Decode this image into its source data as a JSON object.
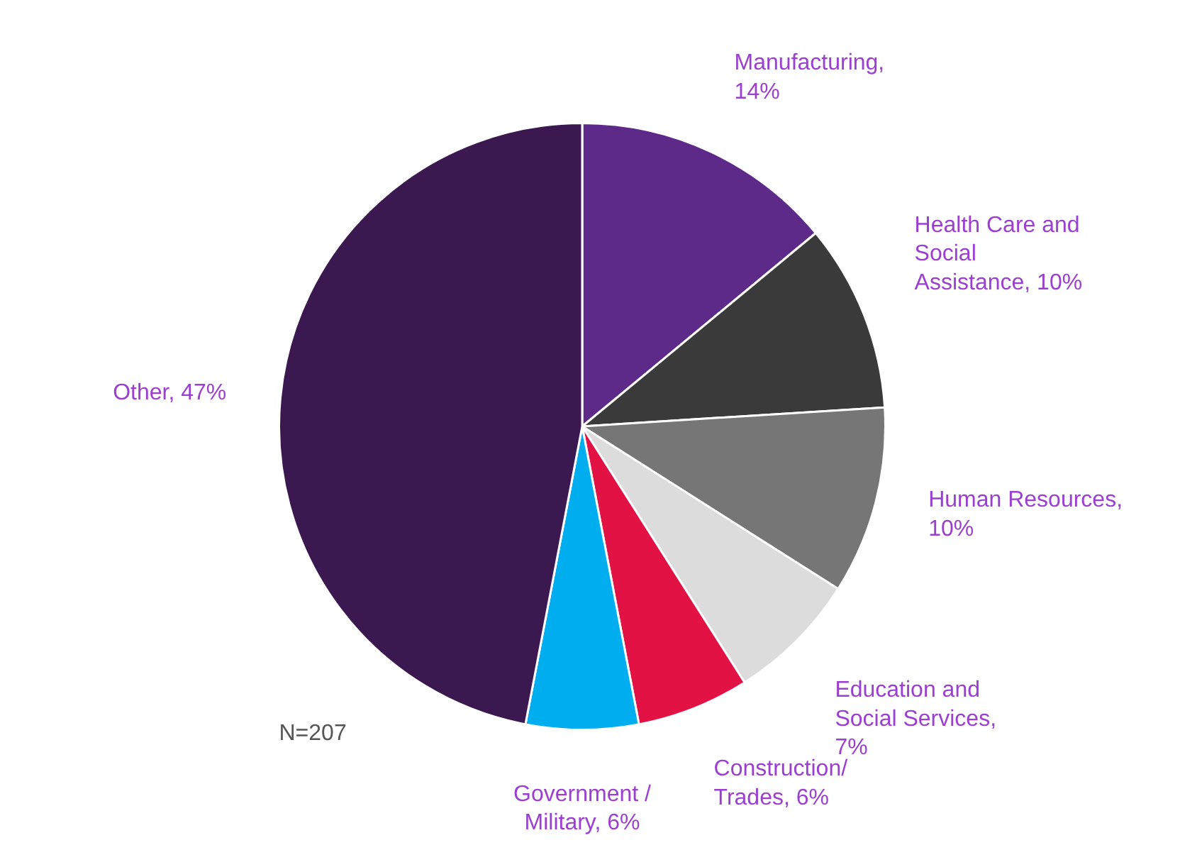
{
  "chart_data": {
    "type": "pie",
    "categories": [
      "Manufacturing, 14%",
      "Health Care and Social Assistance, 10%",
      "Human Resources, 10%",
      "Education and Social Services, 7%",
      "Construction/ Trades, 6%",
      "Government / Military, 6%",
      "Other, 47%"
    ],
    "values": [
      14,
      10,
      10,
      7,
      6,
      6,
      47
    ],
    "colors": [
      "#5e2a8a",
      "#3a3a3a",
      "#767676",
      "#dcdcdc",
      "#e21245",
      "#00adee",
      "#3c1850"
    ],
    "annotations": [
      "N=207"
    ]
  }
}
